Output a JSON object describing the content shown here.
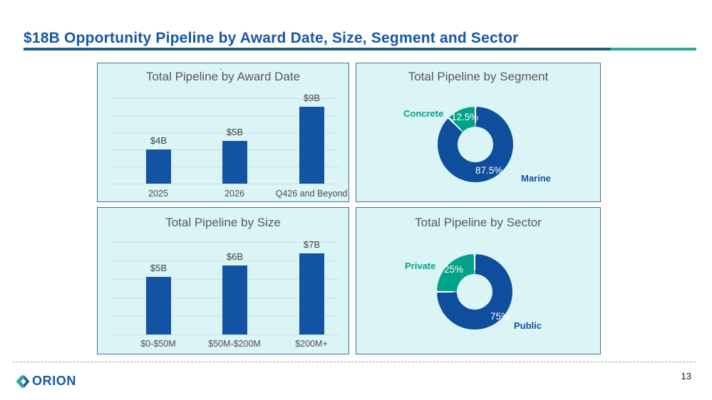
{
  "slide": {
    "title": "$18B Opportunity Pipeline by Award Date, Size, Segment and Sector",
    "page_number": "13",
    "logo": {
      "text": "ORION"
    },
    "colors": {
      "accent_blue": "#1757A6",
      "rule_blue": "#1E5F83",
      "rule_teal": "#2BA79C",
      "panel_bg": "#DBF4F5",
      "panel_border": "#41719C",
      "bar_blue": "#1253A4",
      "donut_blue": "#0F4E9C",
      "donut_teal": "#00A38A",
      "label_navy": "#15509E",
      "label_teal": "#00A38A"
    }
  },
  "chart_data": [
    {
      "type": "bar",
      "title": "Total Pipeline by Award Date",
      "note_marker": ".",
      "categories": [
        "2025",
        "2026",
        "Q426 and Beyond"
      ],
      "values": [
        4,
        5,
        9
      ],
      "value_labels": [
        "$4B",
        "$5B",
        "$9B"
      ],
      "xlabel": "",
      "ylabel": "",
      "ylim": [
        0,
        10
      ],
      "grid": true,
      "legend": "none",
      "bar_color": "#1253A4"
    },
    {
      "type": "pie",
      "subtype": "donut",
      "title": "Total Pipeline by Segment",
      "slices": [
        {
          "label": "Marine",
          "value": 87.5,
          "pct_label": "87.5%",
          "color": "#0F4E9C"
        },
        {
          "label": "Concrete",
          "value": 12.5,
          "pct_label": "12.5%",
          "color": "#00A38A"
        }
      ],
      "start_angle_deg": 0,
      "direction": "clockwise",
      "legend": "none"
    },
    {
      "type": "bar",
      "title": "Total Pipeline by Size",
      "categories": [
        "$0-$50M",
        "$50M-$200M",
        "$200M+"
      ],
      "values": [
        5,
        6,
        7
      ],
      "value_labels": [
        "$5B",
        "$6B",
        "$7B"
      ],
      "xlabel": "",
      "ylabel": "",
      "ylim": [
        0,
        8
      ],
      "grid": true,
      "legend": "none",
      "bar_color": "#1253A4"
    },
    {
      "type": "pie",
      "subtype": "donut",
      "title": "Total Pipeline by Sector",
      "slices": [
        {
          "label": "Public",
          "value": 75,
          "pct_label": "75%",
          "color": "#0F4E9C"
        },
        {
          "label": "Private",
          "value": 25,
          "pct_label": "25%",
          "color": "#00A38A"
        }
      ],
      "start_angle_deg": 0,
      "direction": "clockwise",
      "legend": "none"
    }
  ]
}
